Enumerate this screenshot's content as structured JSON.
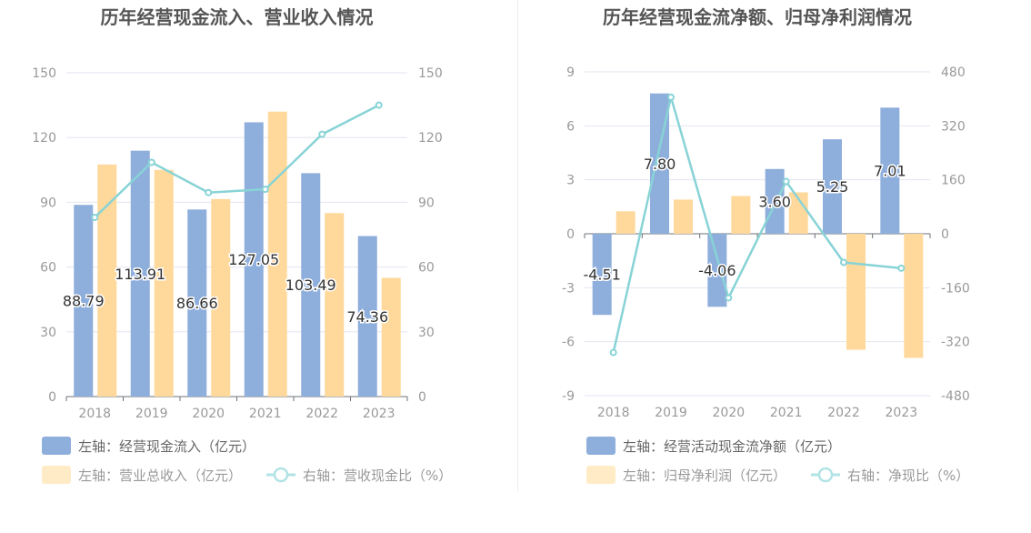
{
  "charts": [
    {
      "title": "历年经营现金流入、营业收入情况",
      "categories": [
        "2018",
        "2019",
        "2020",
        "2021",
        "2022",
        "2023"
      ],
      "left_axis": {
        "min": 0,
        "max": 150,
        "ticks": [
          "0",
          "30",
          "60",
          "90",
          "120",
          "150"
        ]
      },
      "right_axis": {
        "min": 0,
        "max": 150,
        "ticks": [
          "0",
          "30",
          "60",
          "90",
          "120",
          "150"
        ]
      },
      "legend": {
        "bar1": "左轴：经营现金流入（亿元）",
        "bar2": "左轴：营业总收入（亿元）",
        "line": "右轴：营收现金比（%）"
      }
    },
    {
      "title": "历年经营现金流净额、归母净利润情况",
      "categories": [
        "2018",
        "2019",
        "2020",
        "2021",
        "2022",
        "2023"
      ],
      "left_axis": {
        "min": -9,
        "max": 9,
        "ticks": [
          "-9",
          "-6",
          "-3",
          "0",
          "3",
          "6",
          "9"
        ]
      },
      "right_axis": {
        "min": -480,
        "max": 480,
        "ticks": [
          "-480",
          "-320",
          "-160",
          "0",
          "160",
          "320",
          "480"
        ]
      },
      "legend": {
        "bar1": "左轴：经营活动现金流净额（亿元）",
        "bar2": "左轴：归母净利润（亿元）",
        "line": "右轴：净现比（%）"
      }
    }
  ],
  "chart_data": [
    {
      "type": "bar",
      "title": "历年经营现金流入、营业收入情况",
      "categories": [
        "2018",
        "2019",
        "2020",
        "2021",
        "2022",
        "2023"
      ],
      "ylim": [
        0,
        150
      ],
      "y2lim": [
        0,
        150
      ],
      "series": [
        {
          "name": "左轴：经营现金流入（亿元）",
          "axis": "left",
          "type": "bar",
          "values": [
            88.79,
            113.91,
            86.66,
            127.05,
            103.49,
            74.36
          ],
          "labels": [
            "88.79",
            "113.91",
            "86.66",
            "127.05",
            "103.49",
            "74.36"
          ],
          "color": "#8eaedc"
        },
        {
          "name": "左轴：营业总收入（亿元）",
          "axis": "left",
          "type": "bar",
          "values": [
            107.5,
            105,
            91.5,
            132,
            85,
            55
          ],
          "color": "#ffd99c"
        },
        {
          "name": "右轴：营收现金比（%）",
          "axis": "right",
          "type": "line",
          "values": [
            83,
            108.5,
            94.5,
            96,
            121.5,
            135
          ],
          "color": "#88d3d6"
        }
      ]
    },
    {
      "type": "bar",
      "title": "历年经营现金流净额、归母净利润情况",
      "categories": [
        "2018",
        "2019",
        "2020",
        "2021",
        "2022",
        "2023"
      ],
      "ylim": [
        -9,
        9
      ],
      "y2lim": [
        -480,
        480
      ],
      "series": [
        {
          "name": "左轴：经营活动现金流净额（亿元）",
          "axis": "left",
          "type": "bar",
          "values": [
            -4.51,
            7.8,
            -4.06,
            3.6,
            5.25,
            7.01
          ],
          "labels": [
            "-4.51",
            "7.80",
            "-4.06",
            "3.60",
            "5.25",
            "7.01"
          ],
          "color": "#8eaedc"
        },
        {
          "name": "左轴：归母净利润（亿元）",
          "axis": "left",
          "type": "bar",
          "values": [
            1.25,
            1.9,
            2.1,
            2.3,
            -6.45,
            -6.9
          ],
          "color": "#ffd99c"
        },
        {
          "name": "右轴：净现比（%）",
          "axis": "right",
          "type": "line",
          "values": [
            -352,
            405,
            -190,
            155,
            -85,
            -102
          ],
          "color": "#88d3d6"
        }
      ]
    }
  ]
}
